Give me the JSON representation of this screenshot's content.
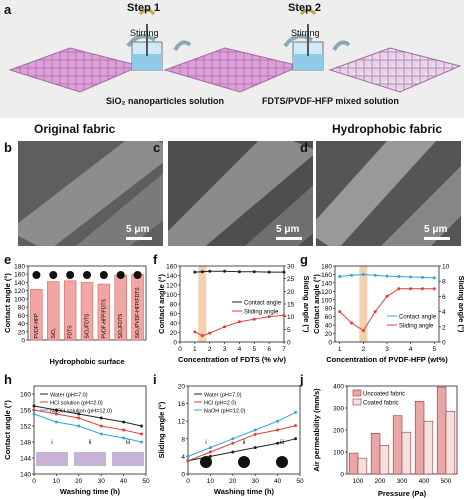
{
  "panel_labels": {
    "a": "a",
    "b": "b",
    "c": "c",
    "d": "d",
    "e": "e",
    "f": "f",
    "g": "g",
    "h": "h",
    "i": "i",
    "j": "j"
  },
  "schematic": {
    "step1": "Step 1",
    "step2": "Step 2",
    "stirring1": "Stirring",
    "stirring2": "Stirring",
    "solution1": "SiO₂ nanoparticles  solution",
    "solution2": "FDTS/PVDF-HFP mixed solution",
    "caption_left": "Original fabric",
    "caption_right": "Hydrophobic fabric"
  },
  "sem": {
    "scale_b": "5 μm",
    "scale_c": "5 μm",
    "scale_d": "5 μm"
  },
  "colors": {
    "fabric": "#d99ad6",
    "red": "#d9433e",
    "blue": "#3ba3d6",
    "black": "#222222",
    "orange_band": "#f0c49a",
    "bar": "#f2a6a3"
  },
  "chart_data": [
    {
      "type": "bar",
      "panel": "e",
      "categories": [
        "PVDF-HFP",
        "SiO₂",
        "FDTS",
        "SiO₂/FDTS",
        "PVDF-HFP/FDTS",
        "SiO₂/FDTS",
        "SiO₂/PVDF-HFP/FDTS"
      ],
      "values": [
        123,
        142,
        144,
        140,
        136,
        158,
        160
      ],
      "ylabel": "Contact angle (°)",
      "xlabel": "Hydrophobic surface",
      "ylim": [
        0,
        180
      ],
      "yticks": [
        0,
        20,
        40,
        60,
        80,
        100,
        120,
        140,
        160,
        180
      ]
    },
    {
      "type": "line",
      "panel": "f",
      "xlabel": "Concentration of FDTS (% v/v)",
      "ylabel": "Contact angle (°)",
      "ylabel2": "Sliding angle (°)",
      "xlim": [
        0,
        7
      ],
      "ylim": [
        0,
        160
      ],
      "ylim2": [
        0,
        30
      ],
      "xticks": [
        0,
        1,
        2,
        3,
        4,
        5,
        6,
        7
      ],
      "yticks": [
        0,
        20,
        40,
        60,
        80,
        100,
        120,
        140,
        160
      ],
      "yticks2": [
        0,
        5,
        10,
        15,
        20,
        25,
        30
      ],
      "highlight_x": 1.5,
      "series": [
        {
          "name": "Contact angle",
          "axis": "left",
          "x": [
            1,
            1.5,
            2,
            3,
            4,
            5,
            6,
            7
          ],
          "y": [
            147,
            148,
            149,
            149,
            148,
            148,
            147,
            147
          ]
        },
        {
          "name": "Sliding angle",
          "axis": "right",
          "x": [
            1,
            1.5,
            2,
            3,
            4,
            5,
            6,
            7
          ],
          "y": [
            4,
            2.5,
            3.5,
            6,
            8,
            9,
            10,
            10.5
          ]
        }
      ],
      "legend": "center-right"
    },
    {
      "type": "line",
      "panel": "g",
      "xlabel": "Concentration of PVDF-HFP (wt%)",
      "ylabel": "Contact angle (°)",
      "ylabel2": "Sliding angle (°)",
      "xlim": [
        0.8,
        5.2
      ],
      "ylim": [
        0,
        180
      ],
      "ylim2": [
        0,
        10
      ],
      "xticks": [
        1,
        2,
        3,
        4,
        5
      ],
      "yticks": [
        0,
        20,
        40,
        60,
        80,
        100,
        120,
        140,
        160,
        180
      ],
      "yticks2": [
        0,
        2,
        4,
        6,
        8,
        10
      ],
      "highlight_x": 2,
      "series": [
        {
          "name": "Contact angle",
          "axis": "left",
          "x": [
            1,
            1.5,
            2,
            2.5,
            3,
            3.5,
            4,
            4.5,
            5
          ],
          "y": [
            155,
            158,
            160,
            158,
            156,
            155,
            154,
            153,
            152
          ]
        },
        {
          "name": "Sliding angle",
          "axis": "right",
          "x": [
            1,
            1.5,
            2,
            2.5,
            3,
            3.5,
            4,
            4.5,
            5
          ],
          "y": [
            4,
            2.5,
            1.5,
            4,
            6,
            7,
            7,
            7,
            7
          ]
        }
      ],
      "legend": "bottom-right"
    },
    {
      "type": "line",
      "panel": "h",
      "xlabel": "Washing time (h)",
      "ylabel": "Contact angle (°)",
      "xlim": [
        0,
        50
      ],
      "ylim": [
        140,
        162
      ],
      "xticks": [
        0,
        10,
        20,
        30,
        40,
        50
      ],
      "yticks": [
        140,
        142,
        144,
        146,
        148,
        150,
        152,
        154,
        156,
        158,
        160,
        162
      ],
      "series": [
        {
          "name": "Water (pH=7.0)",
          "x": [
            0,
            10,
            20,
            30,
            40,
            48
          ],
          "y": [
            157,
            156,
            155,
            154,
            153,
            152
          ]
        },
        {
          "name": "HCl solution (pH=2.0)",
          "x": [
            0,
            10,
            20,
            30,
            40,
            48
          ],
          "y": [
            156,
            155,
            154,
            152,
            151,
            150
          ]
        },
        {
          "name": "NaOH solution (pH=12.0)",
          "x": [
            0,
            10,
            20,
            30,
            40,
            48
          ],
          "y": [
            155,
            153,
            152,
            150,
            149,
            148
          ]
        }
      ],
      "annotations": [
        "i",
        "ii",
        "iii"
      ],
      "legend": "top-left"
    },
    {
      "type": "line",
      "panel": "i",
      "xlabel": "Washing time (h)",
      "ylabel": "Sliding angle (°)",
      "xlim": [
        0,
        50
      ],
      "ylim": [
        0,
        20
      ],
      "xticks": [
        0,
        10,
        20,
        30,
        40,
        50
      ],
      "yticks": [
        0,
        2,
        4,
        6,
        8,
        10,
        12,
        14,
        16,
        18,
        20
      ],
      "series": [
        {
          "name": "Water (pH=7.0)",
          "x": [
            0,
            10,
            20,
            30,
            40,
            48
          ],
          "y": [
            3,
            4,
            5,
            6,
            7,
            8
          ]
        },
        {
          "name": "HCl (pH=2.0)",
          "x": [
            0,
            10,
            20,
            30,
            40,
            48
          ],
          "y": [
            3,
            5,
            7,
            9,
            10,
            11
          ]
        },
        {
          "name": "NaOH (pH=12.0)",
          "x": [
            0,
            10,
            20,
            30,
            40,
            48
          ],
          "y": [
            4,
            6,
            8,
            10,
            12,
            14
          ]
        }
      ],
      "annotations": [
        "i",
        "ii",
        "iii"
      ],
      "legend": "top-left"
    },
    {
      "type": "bar",
      "panel": "j",
      "xlabel": "Pressure (Pa)",
      "ylabel": "Air permeability (mm/s)",
      "categories": [
        "100",
        "200",
        "300",
        "400",
        "500"
      ],
      "ylim": [
        0,
        400
      ],
      "yticks": [
        0,
        50,
        100,
        150,
        200,
        250,
        300,
        350,
        400
      ],
      "series": [
        {
          "name": "Uncoated fabric",
          "values": [
            95,
            185,
            265,
            330,
            395
          ]
        },
        {
          "name": "Coated fabric",
          "values": [
            72,
            130,
            190,
            240,
            285
          ]
        }
      ],
      "legend": "top-left"
    }
  ]
}
